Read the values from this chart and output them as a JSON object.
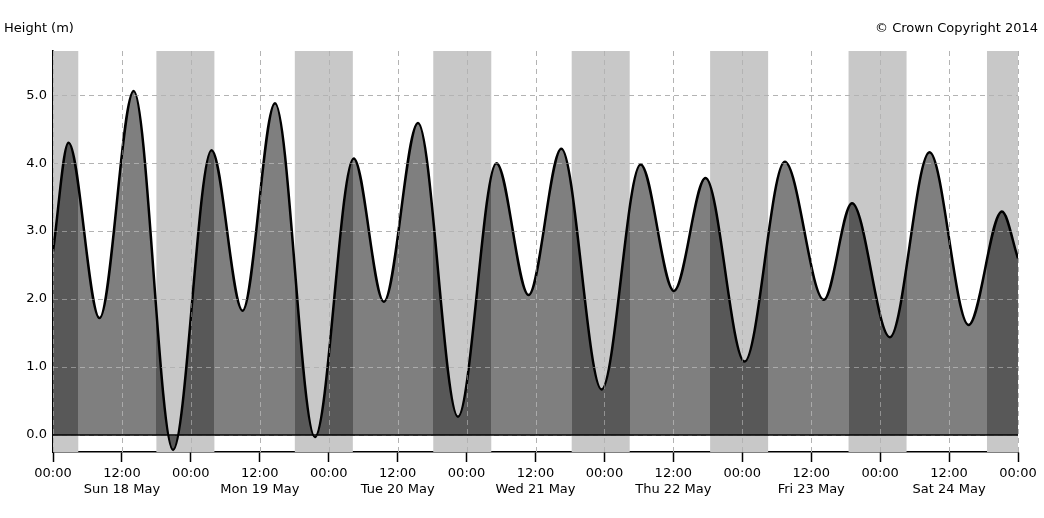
{
  "chart_data": {
    "type": "area",
    "ylabel": "Height (m)",
    "annotations": [
      "© Crown Copyright 2014"
    ],
    "series": [
      {
        "color": "#7f7f7f",
        "x": [
          "2014-05-18T00:00",
          "2014-05-18T02:42",
          "2014-05-18T08:06",
          "2014-05-18T14:03",
          "2014-05-18T20:54",
          "2014-05-19T03:36",
          "2014-05-19T09:00",
          "2014-05-19T14:39",
          "2014-05-19T21:36",
          "2014-05-20T04:21",
          "2014-05-20T09:36",
          "2014-05-20T15:33",
          "2014-05-20T22:30",
          "2014-05-21T05:12",
          "2014-05-21T10:48",
          "2014-05-21T16:30",
          "2014-05-21T23:30",
          "2014-05-22T06:18",
          "2014-05-22T12:06",
          "2014-05-22T17:36",
          "2014-05-23T00:24",
          "2014-05-23T07:24",
          "2014-05-23T14:12",
          "2014-05-23T19:06",
          "2014-05-24T01:42",
          "2014-05-24T08:36",
          "2014-05-24T15:24",
          "2014-05-24T21:12",
          "2014-05-25T00:00"
        ],
        "values": [
          2.7,
          4.3,
          1.72,
          5.06,
          -0.22,
          4.19,
          1.83,
          4.88,
          -0.03,
          4.07,
          1.96,
          4.59,
          0.27,
          4.0,
          2.06,
          4.21,
          0.67,
          3.98,
          2.12,
          3.78,
          1.08,
          4.02,
          1.99,
          3.41,
          1.44,
          4.16,
          1.62,
          3.29,
          2.6
        ]
      }
    ],
    "xlim": [
      "2014-05-18T00:00",
      "2014-05-25T00:00"
    ],
    "xticks": [
      {
        "value": "2014-05-18T00:00",
        "label": "00:00"
      },
      {
        "value": "2014-05-18T12:00",
        "label": "12:00\nSun 18 May"
      },
      {
        "value": "2014-05-19T00:00",
        "label": "00:00"
      },
      {
        "value": "2014-05-19T12:00",
        "label": "12:00\nMon 19 May"
      },
      {
        "value": "2014-05-20T00:00",
        "label": "00:00"
      },
      {
        "value": "2014-05-20T12:00",
        "label": "12:00\nTue 20 May"
      },
      {
        "value": "2014-05-21T00:00",
        "label": "00:00"
      },
      {
        "value": "2014-05-21T12:00",
        "label": "12:00\nWed 21 May"
      },
      {
        "value": "2014-05-22T00:00",
        "label": "00:00"
      },
      {
        "value": "2014-05-22T12:00",
        "label": "12:00\nThu 22 May"
      },
      {
        "value": "2014-05-23T00:00",
        "label": "00:00"
      },
      {
        "value": "2014-05-23T12:00",
        "label": "12:00\nFri 23 May"
      },
      {
        "value": "2014-05-24T00:00",
        "label": "00:00"
      },
      {
        "value": "2014-05-24T12:00",
        "label": "12:00\nSat 24 May"
      },
      {
        "value": "2014-05-25T00:00",
        "label": "00:00"
      }
    ],
    "ylim": [
      -0.25,
      5.65
    ],
    "yticks": [
      {
        "value": 0,
        "label": "0.0"
      },
      {
        "value": 1,
        "label": "1.0"
      },
      {
        "value": 2,
        "label": "2.0"
      },
      {
        "value": 3,
        "label": "3.0"
      },
      {
        "value": 4,
        "label": "4.0"
      },
      {
        "value": 5,
        "label": "5.0"
      }
    ],
    "grid": true,
    "line_style": "solid",
    "marker": "none",
    "ref_lines": [
      {
        "axis": "y",
        "value": 0,
        "color": "#000000"
      }
    ],
    "bands": [
      {
        "axis": "x",
        "from": "2014-05-18T00:00",
        "to": "2014-05-18T04:24",
        "color": "#c8c8c8"
      },
      {
        "axis": "x",
        "from": "2014-05-18T18:00",
        "to": "2014-05-19T04:06",
        "color": "#c8c8c8"
      },
      {
        "axis": "x",
        "from": "2014-05-19T18:06",
        "to": "2014-05-20T04:12",
        "color": "#c8c8c8"
      },
      {
        "axis": "x",
        "from": "2014-05-20T18:12",
        "to": "2014-05-21T04:18",
        "color": "#c8c8c8"
      },
      {
        "axis": "x",
        "from": "2014-05-21T18:18",
        "to": "2014-05-22T04:24",
        "color": "#c8c8c8"
      },
      {
        "axis": "x",
        "from": "2014-05-22T18:24",
        "to": "2014-05-23T04:30",
        "color": "#c8c8c8"
      },
      {
        "axis": "x",
        "from": "2014-05-23T18:30",
        "to": "2014-05-24T04:36",
        "color": "#c8c8c8"
      },
      {
        "axis": "x",
        "from": "2014-05-24T18:36",
        "to": "2014-05-25T00:00",
        "color": "#c8c8c8"
      }
    ]
  }
}
